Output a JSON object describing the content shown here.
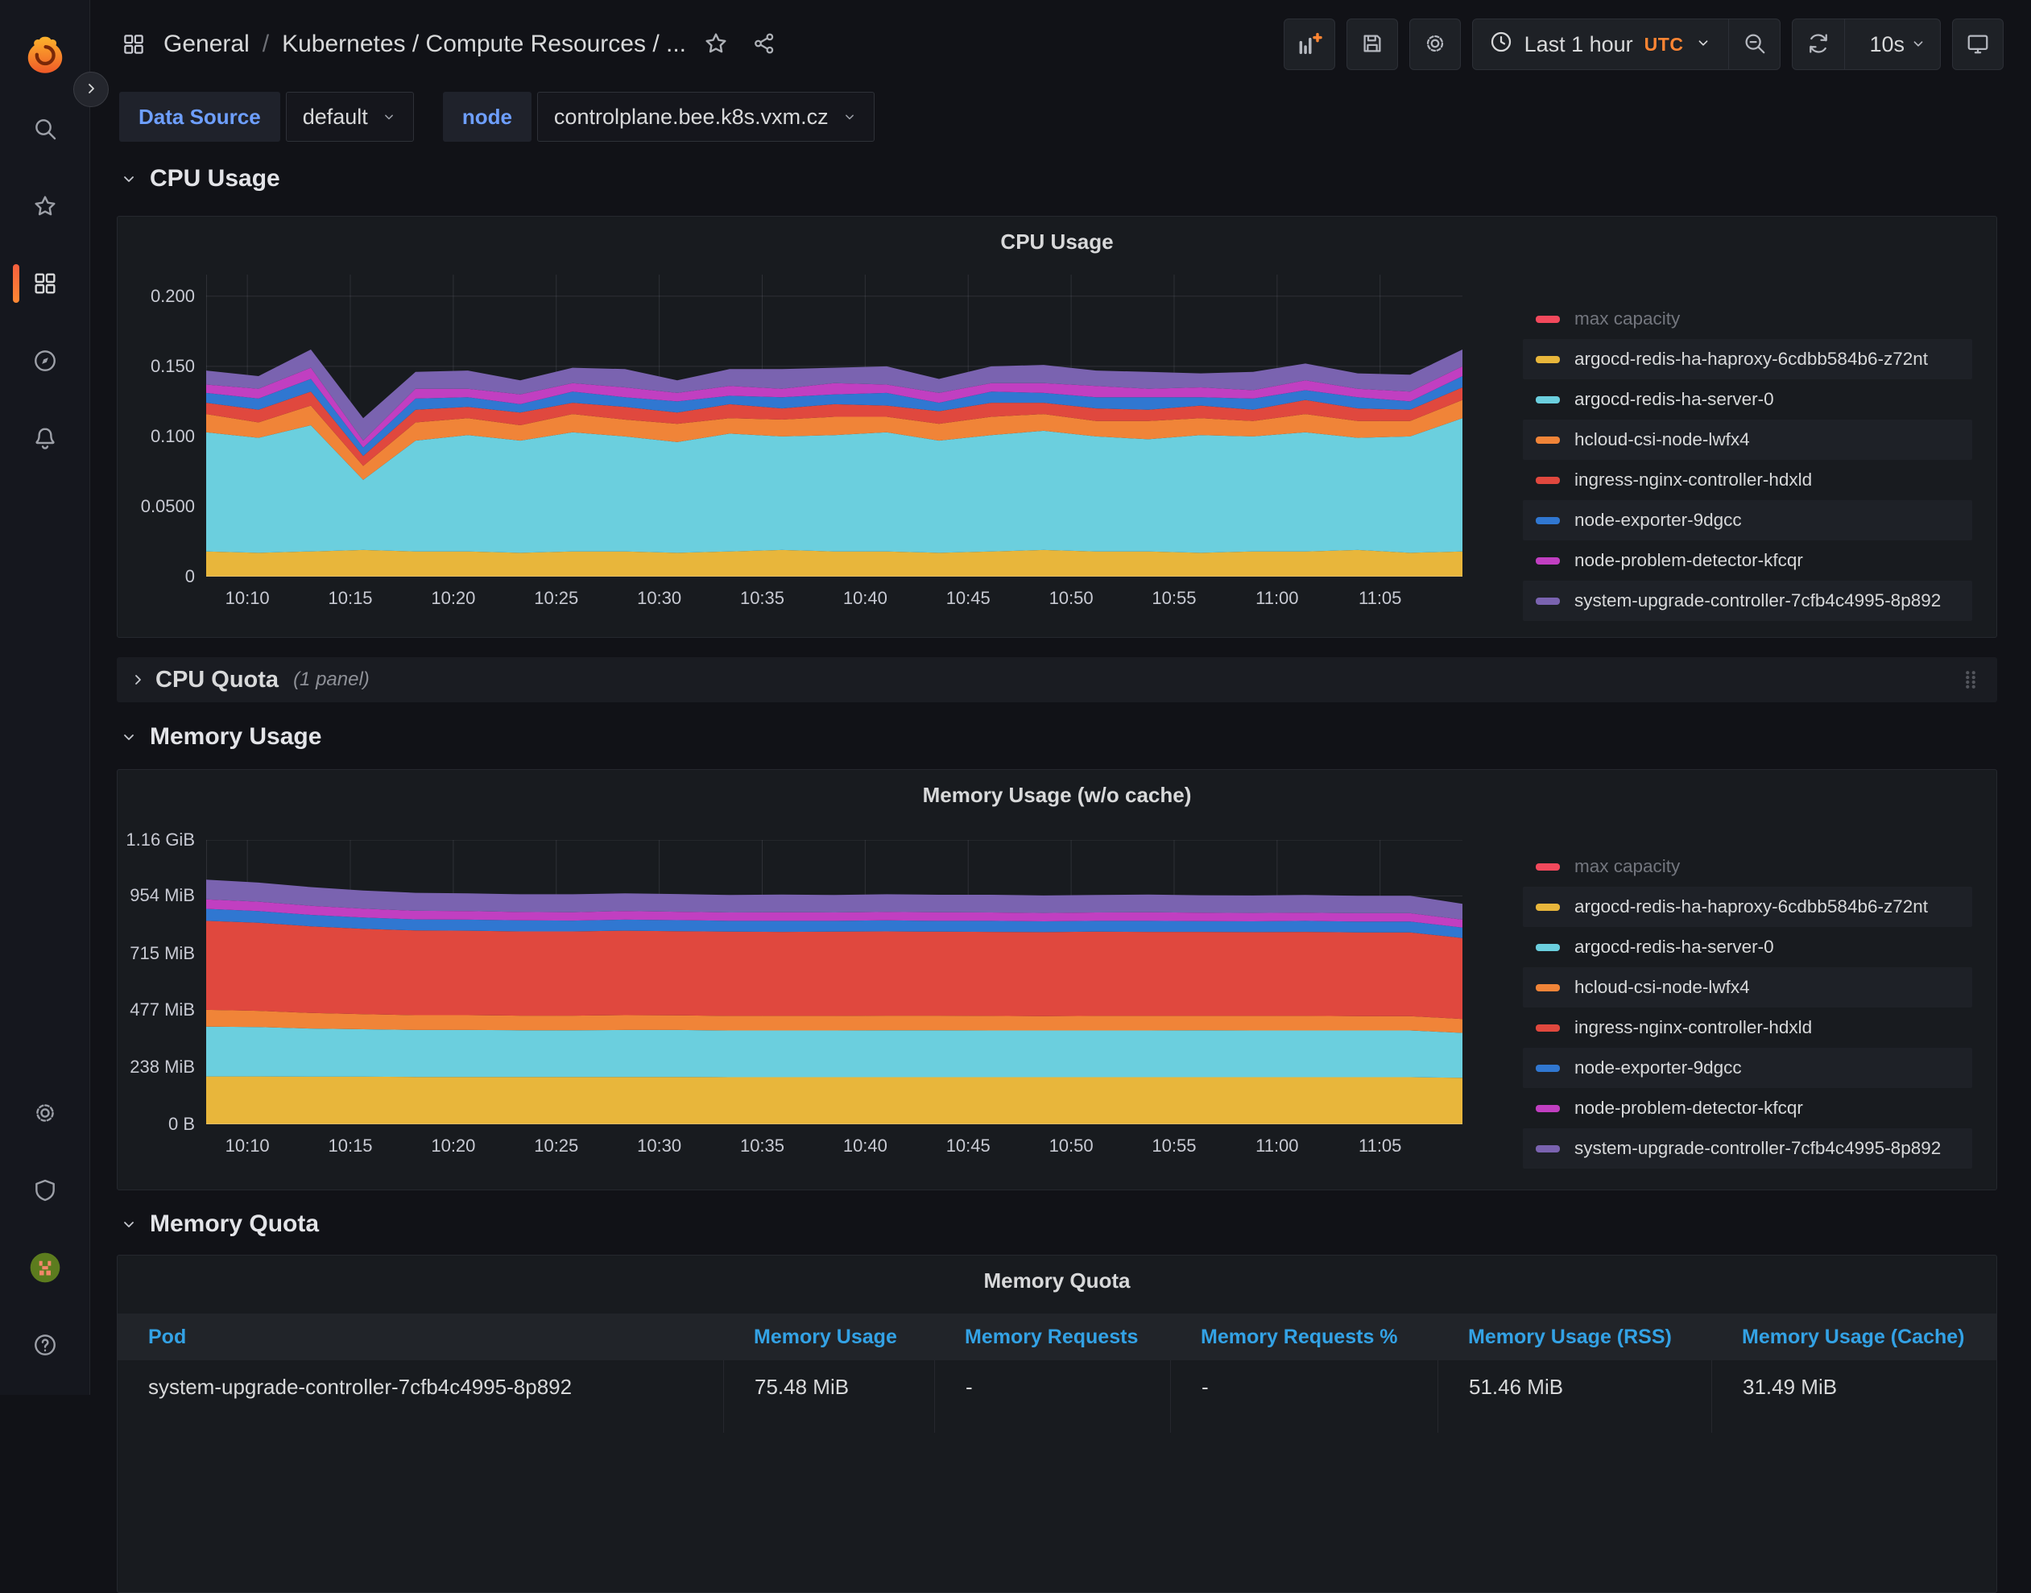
{
  "colors": {
    "accent_orange": "#ff8533",
    "variable_label_blue": "#6e9fff",
    "table_header_blue": "#33a2e5",
    "panel_background": "#181b1f",
    "page_background": "#111217"
  },
  "navbar": {
    "breadcrumb": {
      "section": "General",
      "separator": "/",
      "dashboard": "Kubernetes / Compute Resources / ..."
    },
    "time_label": "Last 1 hour",
    "time_zone": "UTC",
    "refresh_interval": "10s",
    "action_icons": [
      "add-panel",
      "save",
      "gear",
      "clock",
      "angle-down",
      "zoom-out",
      "refresh",
      "monitor",
      "star",
      "share"
    ]
  },
  "sidebar": {
    "active": "dashboards",
    "items_top": [
      {
        "name": "logo",
        "icon": "grafana-logo"
      },
      {
        "name": "search",
        "icon": "search"
      },
      {
        "name": "starred",
        "icon": "star"
      },
      {
        "name": "dashboards",
        "icon": "apps"
      },
      {
        "name": "explore",
        "icon": "compass"
      },
      {
        "name": "alerting",
        "icon": "bell"
      }
    ],
    "items_bottom": [
      {
        "name": "configuration",
        "icon": "gear"
      },
      {
        "name": "server-admin",
        "icon": "shield"
      },
      {
        "name": "profile",
        "icon": "avatar"
      },
      {
        "name": "help",
        "icon": "question"
      }
    ]
  },
  "variables": [
    {
      "label": "Data Source",
      "value": "default"
    },
    {
      "label": "node",
      "value": "controlplane.bee.k8s.vxm.cz"
    }
  ],
  "sections": {
    "cpu_usage": {
      "title": "CPU Usage",
      "collapsed": false
    },
    "cpu_quota": {
      "title": "CPU Quota",
      "meta": "(1 panel)",
      "collapsed": true
    },
    "memory_usage": {
      "title": "Memory Usage",
      "collapsed": false
    },
    "memory_quota": {
      "title": "Memory Quota",
      "collapsed": false
    }
  },
  "chart_data": [
    {
      "type": "area",
      "stacked": true,
      "title": "CPU Usage",
      "xlabel": "",
      "ylabel": "",
      "grid": true,
      "legend_position": "right",
      "y_ticks": [
        0,
        0.05,
        0.1,
        0.15,
        0.2
      ],
      "y_tick_labels": [
        "0",
        "0.0500",
        "0.100",
        "0.150",
        "0.200"
      ],
      "y_max_draw": 0.2154,
      "x_tick_labels": [
        "10:10",
        "10:15",
        "10:20",
        "10:25",
        "10:30",
        "10:35",
        "10:40",
        "10:45",
        "10:50",
        "10:55",
        "11:00",
        "11:05"
      ],
      "legend_disabled_entry": {
        "name": "max capacity",
        "color": "#F2495C"
      },
      "series": [
        {
          "name": "argocd-redis-ha-haproxy-6cdbb584b6-z72nt",
          "color": "#E8B63B",
          "values": [
            0.018,
            0.017,
            0.018,
            0.019,
            0.018,
            0.018,
            0.017,
            0.018,
            0.018,
            0.017,
            0.018,
            0.019,
            0.018,
            0.018,
            0.017,
            0.018,
            0.019,
            0.018,
            0.018,
            0.017,
            0.018,
            0.018,
            0.019,
            0.017,
            0.018
          ]
        },
        {
          "name": "argocd-redis-ha-server-0",
          "color": "#6BCFDE",
          "values": [
            0.085,
            0.082,
            0.09,
            0.05,
            0.079,
            0.083,
            0.08,
            0.085,
            0.082,
            0.079,
            0.084,
            0.081,
            0.083,
            0.085,
            0.08,
            0.083,
            0.085,
            0.082,
            0.08,
            0.084,
            0.082,
            0.085,
            0.08,
            0.083,
            0.095
          ]
        },
        {
          "name": "hcloud-csi-node-lwfx4",
          "color": "#F08438",
          "values": [
            0.013,
            0.011,
            0.014,
            0.01,
            0.013,
            0.012,
            0.011,
            0.013,
            0.012,
            0.013,
            0.011,
            0.012,
            0.013,
            0.011,
            0.012,
            0.013,
            0.012,
            0.011,
            0.013,
            0.012,
            0.011,
            0.013,
            0.012,
            0.011,
            0.013
          ]
        },
        {
          "name": "ingress-nginx-controller-hdxld",
          "color": "#E0483E",
          "values": [
            0.008,
            0.009,
            0.01,
            0.007,
            0.009,
            0.008,
            0.009,
            0.008,
            0.009,
            0.008,
            0.01,
            0.008,
            0.009,
            0.008,
            0.009,
            0.01,
            0.008,
            0.009,
            0.008,
            0.009,
            0.008,
            0.01,
            0.009,
            0.008,
            0.009
          ]
        },
        {
          "name": "node-exporter-9dgcc",
          "color": "#3077D1",
          "values": [
            0.007,
            0.008,
            0.009,
            0.006,
            0.008,
            0.007,
            0.006,
            0.008,
            0.007,
            0.008,
            0.006,
            0.008,
            0.007,
            0.009,
            0.006,
            0.008,
            0.007,
            0.008,
            0.009,
            0.006,
            0.008,
            0.007,
            0.008,
            0.006,
            0.008
          ]
        },
        {
          "name": "node-problem-detector-kfcqr",
          "color": "#C13FC1",
          "values": [
            0.006,
            0.007,
            0.008,
            0.005,
            0.007,
            0.006,
            0.007,
            0.006,
            0.007,
            0.006,
            0.007,
            0.006,
            0.008,
            0.006,
            0.007,
            0.006,
            0.007,
            0.008,
            0.006,
            0.007,
            0.006,
            0.007,
            0.006,
            0.007,
            0.007
          ]
        },
        {
          "name": "system-upgrade-controller-7cfb4c4995-8p892",
          "color": "#7A63B0",
          "values": [
            0.01,
            0.009,
            0.013,
            0.016,
            0.012,
            0.013,
            0.01,
            0.011,
            0.013,
            0.009,
            0.012,
            0.014,
            0.011,
            0.013,
            0.01,
            0.012,
            0.013,
            0.011,
            0.012,
            0.01,
            0.013,
            0.012,
            0.011,
            0.012,
            0.012
          ]
        }
      ]
    },
    {
      "type": "area",
      "stacked": true,
      "title": "Memory Usage (w/o cache)",
      "xlabel": "",
      "ylabel": "",
      "grid": true,
      "legend_position": "right",
      "unit": "MiB",
      "y_ticks": [
        0,
        238,
        477,
        715,
        954,
        1187.84
      ],
      "y_tick_labels": [
        "0 B",
        "238 MiB",
        "477 MiB",
        "715 MiB",
        "954 MiB",
        "1.16 GiB"
      ],
      "y_max_draw": 1187.84,
      "x_tick_labels": [
        "10:10",
        "10:15",
        "10:20",
        "10:25",
        "10:30",
        "10:35",
        "10:40",
        "10:45",
        "10:50",
        "10:55",
        "11:00",
        "11:05"
      ],
      "legend_disabled_entry": {
        "name": "max capacity",
        "color": "#F2495C"
      },
      "series": [
        {
          "name": "argocd-redis-ha-haproxy-6cdbb584b6-z72nt",
          "color": "#E8B63B",
          "values": [
            200,
            200,
            199,
            199,
            198,
            198,
            198,
            198,
            198,
            198,
            197,
            197,
            197,
            197,
            197,
            197,
            197,
            197,
            197,
            197,
            197,
            197,
            197,
            197,
            194
          ]
        },
        {
          "name": "argocd-redis-ha-server-0",
          "color": "#6BCFDE",
          "values": [
            208,
            206,
            201,
            198,
            196,
            196,
            195,
            195,
            196,
            196,
            195,
            195,
            195,
            196,
            196,
            195,
            195,
            195,
            195,
            196,
            195,
            195,
            195,
            195,
            188
          ]
        },
        {
          "name": "hcloud-csi-node-lwfx4",
          "color": "#F08438",
          "values": [
            70,
            68,
            65,
            63,
            62,
            62,
            61,
            61,
            62,
            61,
            61,
            61,
            61,
            61,
            61,
            61,
            60,
            61,
            61,
            60,
            61,
            61,
            60,
            60,
            58
          ]
        },
        {
          "name": "ingress-nginx-controller-hdxld",
          "color": "#E0483E",
          "values": [
            372,
            368,
            362,
            357,
            354,
            353,
            352,
            352,
            353,
            352,
            352,
            351,
            352,
            352,
            351,
            351,
            351,
            352,
            351,
            351,
            350,
            351,
            350,
            350,
            338
          ]
        },
        {
          "name": "node-exporter-9dgcc",
          "color": "#3077D1",
          "values": [
            50,
            49,
            48,
            47,
            46,
            46,
            46,
            45,
            46,
            46,
            45,
            46,
            45,
            46,
            45,
            46,
            45,
            45,
            46,
            45,
            45,
            46,
            45,
            45,
            44
          ]
        },
        {
          "name": "node-problem-detector-kfcqr",
          "color": "#C13FC1",
          "values": [
            40,
            39,
            38,
            37,
            36,
            36,
            35,
            35,
            36,
            35,
            35,
            36,
            35,
            35,
            36,
            35,
            35,
            35,
            36,
            35,
            35,
            34,
            35,
            35,
            33
          ]
        },
        {
          "name": "system-upgrade-controller-7cfb4c4995-8p892",
          "color": "#7A63B0",
          "values": [
            82,
            80,
            78,
            76,
            75,
            74,
            74,
            75,
            74,
            74,
            73,
            74,
            73,
            74,
            73,
            74,
            73,
            73,
            74,
            73,
            73,
            74,
            73,
            73,
            66
          ]
        }
      ]
    },
    {
      "type": "table",
      "title": "Memory Quota",
      "columns": [
        "Pod",
        "Memory Usage",
        "Memory Requests",
        "Memory Requests %",
        "Memory Usage (RSS)",
        "Memory Usage (Cache)"
      ],
      "rows": [
        [
          "system-upgrade-controller-7cfb4c4995-8p892",
          "75.48 MiB",
          "-",
          "-",
          "51.46 MiB",
          "31.49 MiB"
        ]
      ]
    }
  ]
}
